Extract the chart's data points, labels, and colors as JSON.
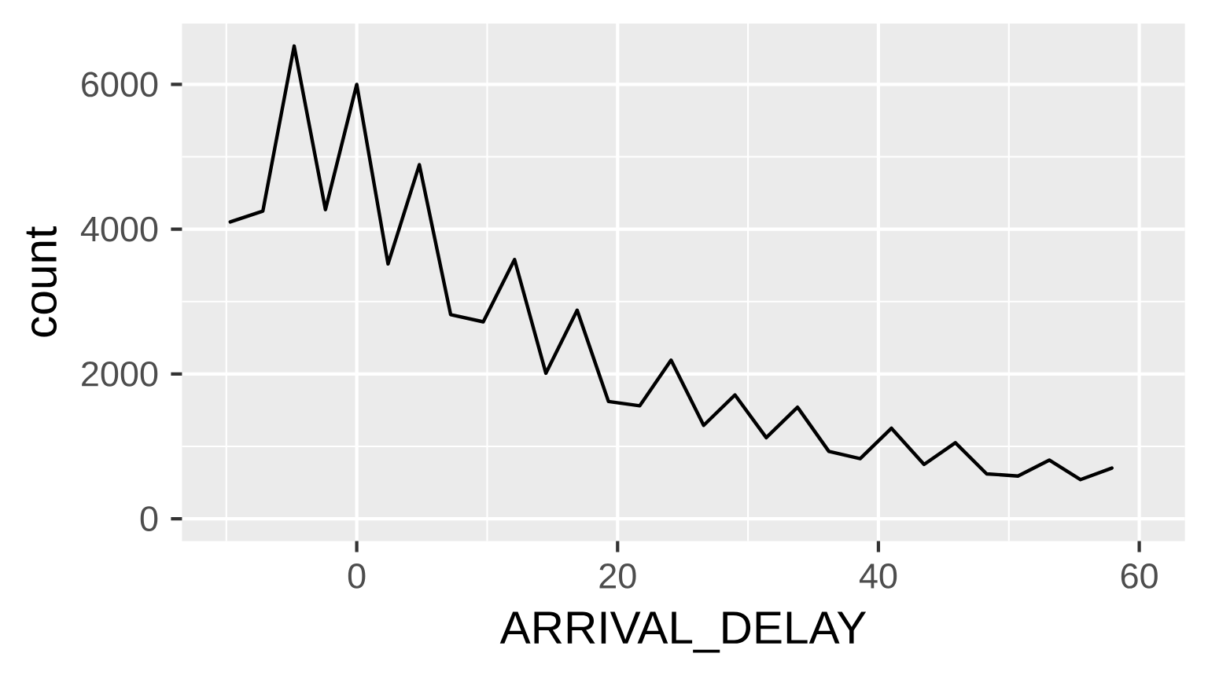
{
  "chart_data": {
    "type": "line",
    "xlabel": "ARRIVAL_DELAY",
    "ylabel": "count",
    "color": "#000000",
    "line_style": "solid",
    "grid": true,
    "x": [
      -9.7,
      -7.2,
      -4.8,
      -2.4,
      0,
      2.4,
      4.8,
      7.2,
      9.7,
      12.1,
      14.5,
      16.9,
      19.3,
      21.7,
      24.1,
      26.6,
      29.0,
      31.4,
      33.8,
      36.2,
      38.6,
      41.0,
      43.5,
      45.9,
      48.3,
      50.7,
      53.1,
      55.5,
      57.9
    ],
    "values": [
      4100,
      4250,
      6530,
      4270,
      6000,
      3520,
      4890,
      2820,
      2720,
      3580,
      2010,
      2880,
      1620,
      1560,
      2190,
      1290,
      1710,
      1120,
      1540,
      930,
      830,
      1250,
      750,
      1050,
      620,
      590,
      810,
      540,
      700
    ],
    "xlim": [
      -13.4,
      63.5
    ],
    "ylim": [
      -310,
      6840
    ],
    "xticks": [
      0,
      20,
      40,
      60
    ],
    "yticks": [
      0,
      2000,
      4000,
      6000
    ]
  }
}
